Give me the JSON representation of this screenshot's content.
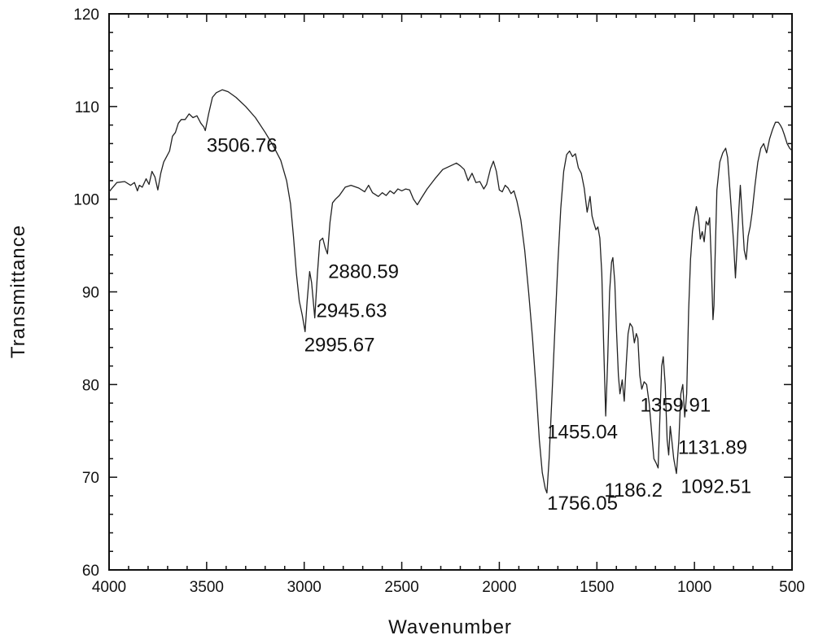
{
  "chart_data": {
    "type": "line",
    "title": "",
    "xlabel": "Wavenumber",
    "ylabel": "Transmittance",
    "xlim": [
      4000,
      500
    ],
    "ylim": [
      60,
      120
    ],
    "x_reversed": true,
    "grid": false,
    "x_ticks": [
      "4000",
      "3500",
      "3000",
      "2500",
      "2000",
      "1500",
      "1000",
      "500"
    ],
    "y_ticks": [
      "60",
      "70",
      "80",
      "90",
      "100",
      "110",
      "120"
    ],
    "series": [
      {
        "points": [
          [
            4000,
            100.8
          ],
          [
            3960,
            101.8
          ],
          [
            3920,
            101.9
          ],
          [
            3890,
            101.5
          ],
          [
            3870,
            101.8
          ],
          [
            3855,
            100.9
          ],
          [
            3845,
            101.5
          ],
          [
            3830,
            101.3
          ],
          [
            3810,
            102.2
          ],
          [
            3795,
            101.6
          ],
          [
            3780,
            103.0
          ],
          [
            3765,
            102.4
          ],
          [
            3750,
            101.0
          ],
          [
            3735,
            102.8
          ],
          [
            3720,
            104.0
          ],
          [
            3705,
            104.6
          ],
          [
            3690,
            105.2
          ],
          [
            3675,
            106.8
          ],
          [
            3660,
            107.2
          ],
          [
            3645,
            108.2
          ],
          [
            3630,
            108.6
          ],
          [
            3610,
            108.6
          ],
          [
            3590,
            109.2
          ],
          [
            3570,
            108.8
          ],
          [
            3550,
            109.0
          ],
          [
            3530,
            108.2
          ],
          [
            3515,
            107.8
          ],
          [
            3506.76,
            107.4
          ],
          [
            3490,
            109.2
          ],
          [
            3470,
            111.0
          ],
          [
            3450,
            111.5
          ],
          [
            3420,
            111.8
          ],
          [
            3390,
            111.6
          ],
          [
            3350,
            111.0
          ],
          [
            3300,
            110.0
          ],
          [
            3250,
            108.8
          ],
          [
            3200,
            107.2
          ],
          [
            3160,
            105.8
          ],
          [
            3120,
            104.2
          ],
          [
            3090,
            102.0
          ],
          [
            3070,
            99.5
          ],
          [
            3055,
            96.0
          ],
          [
            3040,
            92.0
          ],
          [
            3025,
            89.0
          ],
          [
            3010,
            87.5
          ],
          [
            2995.67,
            85.7
          ],
          [
            2985,
            89.0
          ],
          [
            2972,
            92.2
          ],
          [
            2962,
            91.0
          ],
          [
            2945.63,
            87.2
          ],
          [
            2932,
            92.0
          ],
          [
            2920,
            95.5
          ],
          [
            2905,
            95.8
          ],
          [
            2893,
            94.8
          ],
          [
            2880.59,
            94.1
          ],
          [
            2868,
            97.5
          ],
          [
            2855,
            99.6
          ],
          [
            2840,
            100.0
          ],
          [
            2820,
            100.4
          ],
          [
            2790,
            101.3
          ],
          [
            2760,
            101.5
          ],
          [
            2720,
            101.2
          ],
          [
            2690,
            100.8
          ],
          [
            2670,
            101.5
          ],
          [
            2650,
            100.7
          ],
          [
            2620,
            100.3
          ],
          [
            2600,
            100.7
          ],
          [
            2580,
            100.4
          ],
          [
            2560,
            100.9
          ],
          [
            2540,
            100.6
          ],
          [
            2520,
            101.1
          ],
          [
            2500,
            100.9
          ],
          [
            2480,
            101.1
          ],
          [
            2460,
            101.0
          ],
          [
            2440,
            100.0
          ],
          [
            2420,
            99.4
          ],
          [
            2400,
            100.1
          ],
          [
            2370,
            101.1
          ],
          [
            2330,
            102.2
          ],
          [
            2290,
            103.2
          ],
          [
            2250,
            103.6
          ],
          [
            2220,
            103.9
          ],
          [
            2200,
            103.6
          ],
          [
            2180,
            103.2
          ],
          [
            2160,
            102.0
          ],
          [
            2140,
            102.8
          ],
          [
            2120,
            101.8
          ],
          [
            2100,
            101.9
          ],
          [
            2080,
            101.1
          ],
          [
            2065,
            101.6
          ],
          [
            2045,
            103.3
          ],
          [
            2030,
            104.1
          ],
          [
            2015,
            103.0
          ],
          [
            2000,
            101.0
          ],
          [
            1985,
            100.8
          ],
          [
            1970,
            101.5
          ],
          [
            1955,
            101.2
          ],
          [
            1940,
            100.6
          ],
          [
            1925,
            100.9
          ],
          [
            1910,
            99.8
          ],
          [
            1890,
            97.8
          ],
          [
            1870,
            94.5
          ],
          [
            1850,
            90.0
          ],
          [
            1830,
            85.0
          ],
          [
            1810,
            79.0
          ],
          [
            1795,
            74.0
          ],
          [
            1780,
            70.5
          ],
          [
            1765,
            68.8
          ],
          [
            1756.05,
            68.3
          ],
          [
            1745,
            72.0
          ],
          [
            1730,
            79.0
          ],
          [
            1715,
            86.0
          ],
          [
            1700,
            93.0
          ],
          [
            1685,
            99.0
          ],
          [
            1670,
            103.0
          ],
          [
            1655,
            104.8
          ],
          [
            1640,
            105.2
          ],
          [
            1625,
            104.6
          ],
          [
            1610,
            104.9
          ],
          [
            1595,
            103.4
          ],
          [
            1580,
            102.8
          ],
          [
            1565,
            101.2
          ],
          [
            1550,
            98.6
          ],
          [
            1535,
            100.3
          ],
          [
            1525,
            98.2
          ],
          [
            1515,
            97.4
          ],
          [
            1505,
            96.7
          ],
          [
            1495,
            97.0
          ],
          [
            1485,
            95.8
          ],
          [
            1475,
            92.0
          ],
          [
            1465,
            84.0
          ],
          [
            1455.04,
            76.6
          ],
          [
            1445,
            82.5
          ],
          [
            1435,
            90.0
          ],
          [
            1425,
            93.2
          ],
          [
            1418,
            93.7
          ],
          [
            1408,
            91.0
          ],
          [
            1400,
            86.0
          ],
          [
            1390,
            81.0
          ],
          [
            1382,
            79.0
          ],
          [
            1370,
            80.5
          ],
          [
            1359.91,
            78.2
          ],
          [
            1350,
            82.0
          ],
          [
            1340,
            85.5
          ],
          [
            1330,
            86.6
          ],
          [
            1318,
            86.2
          ],
          [
            1308,
            84.5
          ],
          [
            1298,
            85.5
          ],
          [
            1290,
            85.0
          ],
          [
            1280,
            81.0
          ],
          [
            1270,
            79.5
          ],
          [
            1258,
            80.3
          ],
          [
            1245,
            80.0
          ],
          [
            1232,
            78.0
          ],
          [
            1220,
            75.0
          ],
          [
            1208,
            72.0
          ],
          [
            1196,
            71.5
          ],
          [
            1186.2,
            71.0
          ],
          [
            1178,
            76.0
          ],
          [
            1168,
            82.0
          ],
          [
            1160,
            83.0
          ],
          [
            1150,
            80.0
          ],
          [
            1140,
            74.0
          ],
          [
            1131.89,
            72.4
          ],
          [
            1124,
            75.5
          ],
          [
            1116,
            74.0
          ],
          [
            1106,
            72.0
          ],
          [
            1092.51,
            70.4
          ],
          [
            1080,
            74.0
          ],
          [
            1070,
            79.0
          ],
          [
            1060,
            80.0
          ],
          [
            1050,
            76.5
          ],
          [
            1040,
            79.0
          ],
          [
            1030,
            88.0
          ],
          [
            1020,
            93.5
          ],
          [
            1010,
            96.5
          ],
          [
            1000,
            98.0
          ],
          [
            990,
            99.2
          ],
          [
            980,
            98.2
          ],
          [
            970,
            95.7
          ],
          [
            960,
            96.5
          ],
          [
            950,
            95.4
          ],
          [
            940,
            97.6
          ],
          [
            930,
            97.2
          ],
          [
            922,
            98.0
          ],
          [
            915,
            94.0
          ],
          [
            905,
            87.0
          ],
          [
            900,
            88.5
          ],
          [
            895,
            93.0
          ],
          [
            885,
            101.0
          ],
          [
            870,
            104.0
          ],
          [
            855,
            105.0
          ],
          [
            840,
            105.5
          ],
          [
            830,
            104.5
          ],
          [
            815,
            100.0
          ],
          [
            800,
            95.5
          ],
          [
            790,
            91.5
          ],
          [
            780,
            95.5
          ],
          [
            772,
            99.0
          ],
          [
            765,
            101.5
          ],
          [
            755,
            98.0
          ],
          [
            745,
            94.5
          ],
          [
            735,
            93.5
          ],
          [
            725,
            96.0
          ],
          [
            715,
            97.0
          ],
          [
            705,
            98.5
          ],
          [
            690,
            101.5
          ],
          [
            675,
            104.0
          ],
          [
            660,
            105.5
          ],
          [
            645,
            106.0
          ],
          [
            630,
            105.0
          ],
          [
            615,
            106.5
          ],
          [
            600,
            107.5
          ],
          [
            585,
            108.3
          ],
          [
            570,
            108.3
          ],
          [
            560,
            108.0
          ],
          [
            550,
            107.6
          ],
          [
            540,
            107.0
          ],
          [
            525,
            106.0
          ],
          [
            512,
            105.5
          ],
          [
            503,
            105.3
          ]
        ]
      }
    ],
    "annotations": [
      {
        "text": "3506.76",
        "x": 3506.76,
        "y": 107.4,
        "lx": 3500,
        "ly": 105.8
      },
      {
        "text": "2880.59",
        "x": 2880.59,
        "y": 94.1,
        "lx": 2877,
        "ly": 92.2
      },
      {
        "text": "2945.63",
        "x": 2945.63,
        "y": 87.2,
        "lx": 2938,
        "ly": 88.0
      },
      {
        "text": "2995.67",
        "x": 2995.67,
        "y": 85.7,
        "lx": 3000,
        "ly": 84.3
      },
      {
        "text": "1359.91",
        "x": 1359.91,
        "y": 78.2,
        "lx": 1278,
        "ly": 77.8
      },
      {
        "text": "1455.04",
        "x": 1455.04,
        "y": 76.6,
        "lx": 1755,
        "ly": 74.9
      },
      {
        "text": "1131.89",
        "x": 1131.89,
        "y": 72.4,
        "lx": 1084,
        "ly": 73.2
      },
      {
        "text": "1186.2",
        "x": 1186.2,
        "y": 71.0,
        "lx": 1462,
        "ly": 68.6
      },
      {
        "text": "1092.51",
        "x": 1092.51,
        "y": 70.4,
        "lx": 1070,
        "ly": 69.0
      },
      {
        "text": "1756.05",
        "x": 1756.05,
        "y": 68.3,
        "lx": 1755,
        "ly": 67.2
      }
    ]
  }
}
